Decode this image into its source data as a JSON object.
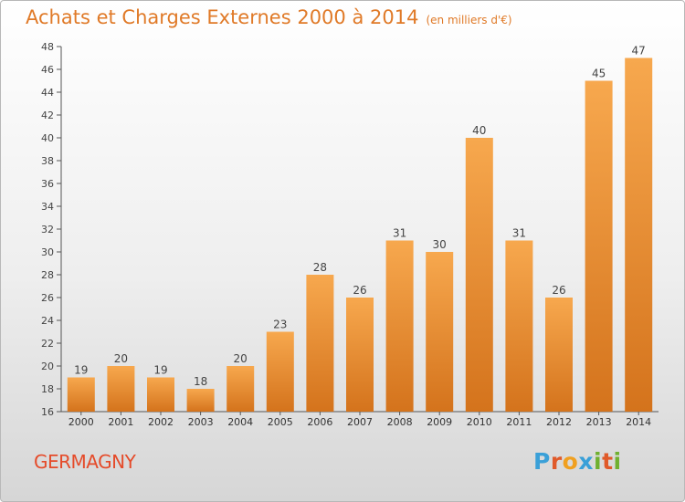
{
  "header": {
    "title": "Achats et Charges Externes 2000 à 2014",
    "subtitle": "(en milliers d'€)"
  },
  "footer": {
    "commune": "GERMAGNY",
    "logo": "Proxiti"
  },
  "colors": {
    "bar_light": "#f7a84e",
    "bar_dark": "#d4731c",
    "title": "#e07a28",
    "commune": "#e54b2a"
  },
  "chart_data": {
    "type": "bar",
    "title": "Achats et Charges Externes 2000 à 2014",
    "subtitle": "(en milliers d'€)",
    "categories": [
      "2000",
      "2001",
      "2002",
      "2003",
      "2004",
      "2005",
      "2006",
      "2007",
      "2008",
      "2009",
      "2010",
      "2011",
      "2012",
      "2013",
      "2014"
    ],
    "values": [
      19,
      20,
      19,
      18,
      20,
      23,
      28,
      26,
      31,
      30,
      40,
      31,
      26,
      45,
      47
    ],
    "ylim": [
      16,
      48
    ],
    "yticks": [
      16,
      18,
      20,
      22,
      24,
      26,
      28,
      30,
      32,
      34,
      36,
      38,
      40,
      42,
      44,
      46,
      48
    ],
    "grid": false,
    "data_labels": true
  }
}
